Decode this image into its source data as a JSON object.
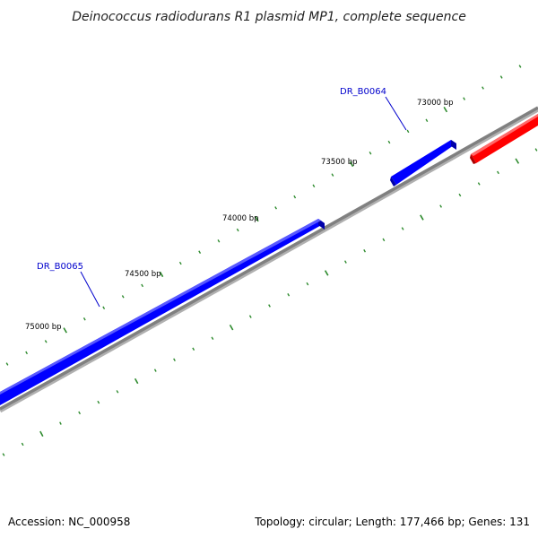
{
  "title": "Deinococcus radiodurans R1 plasmid MP1, complete sequence",
  "footer": {
    "accession": "Accession: NC_000958",
    "summary": "Topology: circular; Length: 177,466 bp; Genes: 131"
  },
  "scale_labels": [
    "73000 bp",
    "73500 bp",
    "74000 bp",
    "74500 bp",
    "75000 bp"
  ],
  "genes": [
    {
      "name": "DR_B0064",
      "strand": "forward",
      "color": "#0000ff"
    },
    {
      "name": "DR_B0065",
      "strand": "forward",
      "color": "#0000ff"
    },
    {
      "name": "",
      "strand": "reverse",
      "color": "#ff0000"
    }
  ],
  "colors": {
    "backbone": "#808080",
    "tick": "#2e8b2e",
    "forward_gene": "#0000ff",
    "reverse_gene": "#ff0000",
    "label_text": "#0000cc"
  }
}
